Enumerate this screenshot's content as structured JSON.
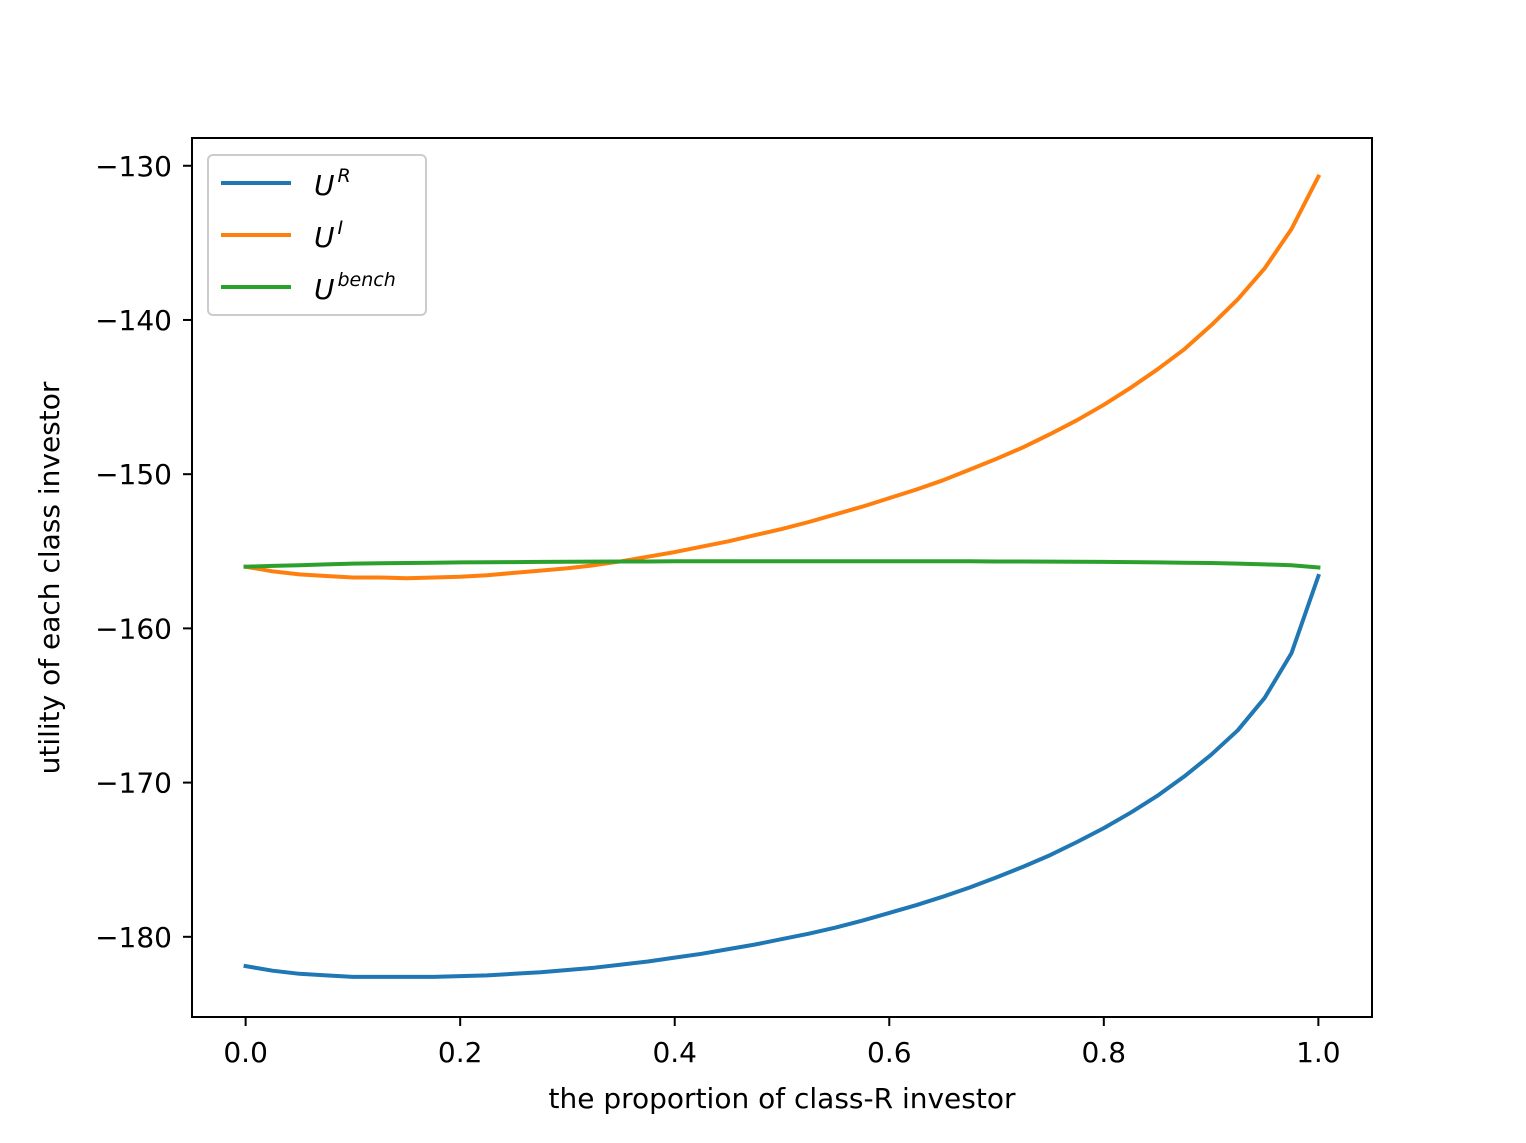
{
  "chart_data": {
    "type": "line",
    "title": "",
    "xlabel": "the proportion of class-R investor",
    "ylabel": "utility of each class investor",
    "xlim": [
      -0.05,
      1.05
    ],
    "ylim": [
      -185.2,
      -128.2
    ],
    "xticks": [
      0.0,
      0.2,
      0.4,
      0.6,
      0.8,
      1.0
    ],
    "xtick_labels": [
      "0.0",
      "0.2",
      "0.4",
      "0.6",
      "0.8",
      "1.0"
    ],
    "yticks": [
      -180,
      -170,
      -160,
      -150,
      -140,
      -130
    ],
    "ytick_labels": [
      "−180",
      "−170",
      "−160",
      "−150",
      "−140",
      "−130"
    ],
    "legend_position": "top-left",
    "x": [
      0.0,
      0.025,
      0.05,
      0.075,
      0.1,
      0.125,
      0.15,
      0.175,
      0.2,
      0.225,
      0.25,
      0.275,
      0.3,
      0.325,
      0.35,
      0.375,
      0.4,
      0.425,
      0.45,
      0.475,
      0.5,
      0.525,
      0.55,
      0.575,
      0.6,
      0.625,
      0.65,
      0.675,
      0.7,
      0.725,
      0.75,
      0.775,
      0.8,
      0.825,
      0.85,
      0.875,
      0.9,
      0.925,
      0.95,
      0.975,
      1.0
    ],
    "series": [
      {
        "name": "U",
        "superscript": "R",
        "color": "#1f77b4",
        "values": [
          -181.9,
          -182.2,
          -182.4,
          -182.5,
          -182.6,
          -182.6,
          -182.6,
          -182.6,
          -182.55,
          -182.5,
          -182.4,
          -182.3,
          -182.15,
          -182.0,
          -181.8,
          -181.6,
          -181.35,
          -181.1,
          -180.8,
          -180.5,
          -180.15,
          -179.8,
          -179.4,
          -178.95,
          -178.45,
          -177.95,
          -177.4,
          -176.8,
          -176.15,
          -175.45,
          -174.7,
          -173.85,
          -172.95,
          -171.95,
          -170.85,
          -169.6,
          -168.2,
          -166.6,
          -164.5,
          -161.6,
          -156.6
        ]
      },
      {
        "name": "U",
        "superscript": "I",
        "color": "#ff7f0e",
        "values": [
          -156.0,
          -156.3,
          -156.5,
          -156.6,
          -156.7,
          -156.7,
          -156.75,
          -156.7,
          -156.65,
          -156.55,
          -156.4,
          -156.25,
          -156.1,
          -155.9,
          -155.65,
          -155.35,
          -155.05,
          -154.7,
          -154.35,
          -153.95,
          -153.55,
          -153.1,
          -152.6,
          -152.1,
          -151.55,
          -151.0,
          -150.4,
          -149.7,
          -149.0,
          -148.25,
          -147.4,
          -146.5,
          -145.5,
          -144.4,
          -143.2,
          -141.9,
          -140.35,
          -138.65,
          -136.65,
          -134.1,
          -130.7
        ]
      },
      {
        "name": "U",
        "superscript": "bench",
        "color": "#2ca02c",
        "values": [
          -156.0,
          -155.95,
          -155.9,
          -155.85,
          -155.8,
          -155.78,
          -155.76,
          -155.74,
          -155.72,
          -155.71,
          -155.7,
          -155.69,
          -155.68,
          -155.67,
          -155.66,
          -155.66,
          -155.65,
          -155.65,
          -155.65,
          -155.65,
          -155.65,
          -155.65,
          -155.65,
          -155.65,
          -155.65,
          -155.65,
          -155.65,
          -155.65,
          -155.66,
          -155.66,
          -155.67,
          -155.68,
          -155.69,
          -155.7,
          -155.72,
          -155.74,
          -155.76,
          -155.8,
          -155.85,
          -155.9,
          -156.05
        ]
      }
    ]
  }
}
